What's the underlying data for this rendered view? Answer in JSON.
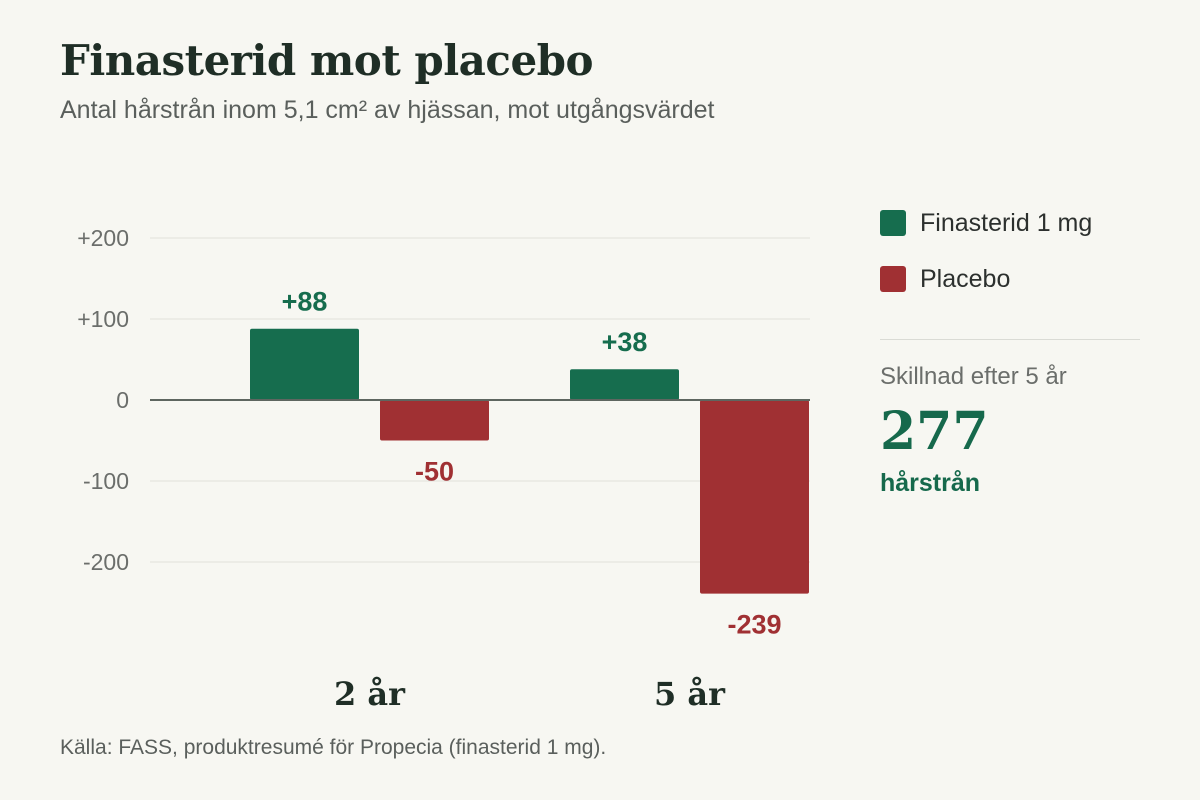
{
  "title": "Finasterid mot placebo",
  "subtitle": "Antal hårstrån inom 5,1 cm² av hjässan, mot utgångsvärdet",
  "colors": {
    "finasteride": "#166d4e",
    "placebo": "#a03033",
    "grid": "#e0e1db",
    "zero_line": "#5e6660"
  },
  "chart_data": {
    "type": "bar",
    "categories": [
      "2 år",
      "5 år"
    ],
    "series": [
      {
        "name": "Finasterid 1 mg",
        "values": [
          88,
          38
        ],
        "labels": [
          "+88",
          "+38"
        ]
      },
      {
        "name": "Placebo",
        "values": [
          -50,
          -239
        ],
        "labels": [
          "-50",
          "-239"
        ]
      }
    ],
    "yticks": [
      200,
      100,
      0,
      -100,
      -200
    ],
    "ytick_labels": [
      "+200",
      "+100",
      "0",
      "-100",
      "-200"
    ],
    "ylim": [
      -300,
      200
    ],
    "grid": true,
    "legend_position": "right"
  },
  "legend": {
    "items": [
      "Finasterid 1 mg",
      "Placebo"
    ]
  },
  "summary": {
    "title": "Skillnad efter 5 år",
    "value": "277",
    "unit": "hårstrån"
  },
  "source": "Källa: FASS, produktresumé för Propecia (finasterid 1 mg)."
}
